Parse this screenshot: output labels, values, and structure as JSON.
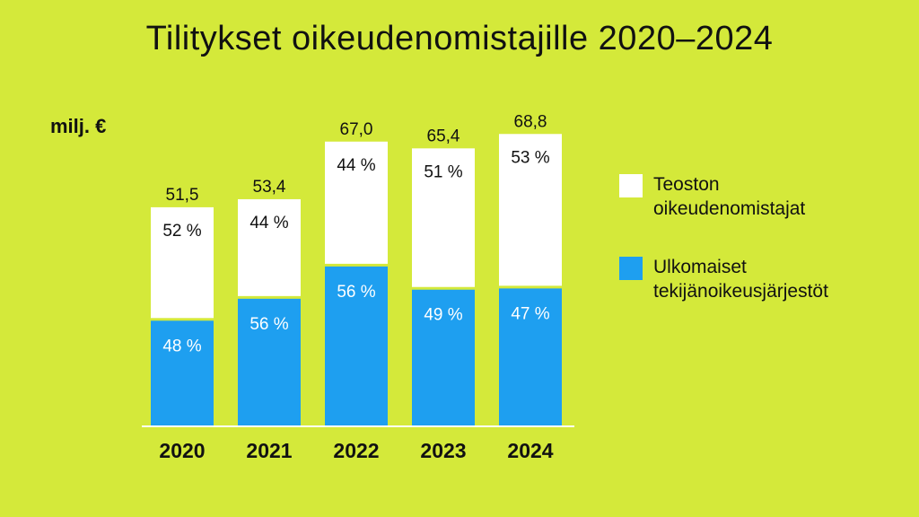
{
  "title": "Tilitykset oikeudenomistajille 2020–2024",
  "unit_label": "milj. €",
  "colors": {
    "background": "#d4e93a",
    "teosto": "#ffffff",
    "ulkomaiset": "#1e9ff0"
  },
  "legend": [
    {
      "label": "Teoston\noikeudenomistajat",
      "color": "#ffffff"
    },
    {
      "label": "Ulkomaiset\ntekijänoikeusjärjestöt",
      "color": "#1e9ff0"
    }
  ],
  "chart_data": {
    "type": "bar",
    "stacked": true,
    "title": "Tilitykset oikeudenomistajille 2020–2024",
    "ylabel": "milj. €",
    "categories": [
      "2020",
      "2021",
      "2022",
      "2023",
      "2024"
    ],
    "totals": [
      51.5,
      53.4,
      67.0,
      65.4,
      68.8
    ],
    "total_labels": [
      "51,5",
      "53,4",
      "67,0",
      "65,4",
      "68,8"
    ],
    "ylim": [
      0,
      72
    ],
    "series": [
      {
        "name": "Ulkomaiset tekijänoikeusjärjestöt",
        "color": "#1e9ff0",
        "percent": [
          48,
          56,
          56,
          49,
          47
        ],
        "labels": [
          "48 %",
          "56 %",
          "56 %",
          "49 %",
          "47 %"
        ]
      },
      {
        "name": "Teoston oikeudenomistajat",
        "color": "#ffffff",
        "percent": [
          52,
          44,
          44,
          51,
          53
        ],
        "labels": [
          "52 %",
          "44 %",
          "44 %",
          "51 %",
          "53 %"
        ]
      }
    ],
    "legend_position": "right",
    "grid": false
  }
}
